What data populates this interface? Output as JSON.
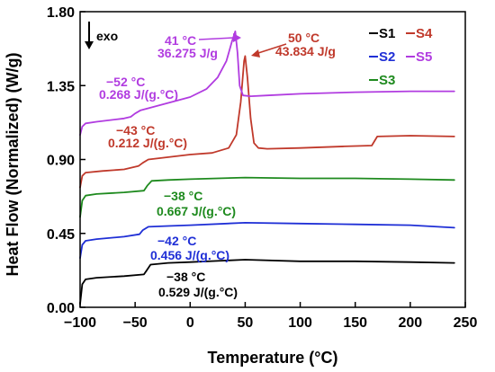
{
  "chart_data": {
    "type": "line",
    "xlabel": "Temperature (°C)",
    "ylabel": "Heat Flow (Normalized) (W/g)",
    "xlim": [
      -100,
      250
    ],
    "ylim": [
      0.0,
      1.8
    ],
    "xticks": [
      "−100",
      "−50",
      "0",
      "50",
      "100",
      "150",
      "200",
      "250"
    ],
    "xtick_values": [
      -100,
      -50,
      0,
      50,
      100,
      150,
      200,
      250
    ],
    "yticks": [
      "0.00",
      "0.45",
      "0.90",
      "1.35",
      "1.80"
    ],
    "ytick_values": [
      0.0,
      0.45,
      0.9,
      1.35,
      1.8
    ],
    "exo_label": "exo",
    "legend": [
      {
        "label": "S1",
        "color": "#000000"
      },
      {
        "label": "S4",
        "color": "#c0392b"
      },
      {
        "label": "S2",
        "color": "#1f2fd6"
      },
      {
        "label": "S5",
        "color": "#b13ce0"
      },
      {
        "label": "S3",
        "color": "#1e8a1e"
      }
    ],
    "series": [
      {
        "name": "S1",
        "color": "#000000",
        "x": [
          -100,
          -98,
          -95,
          -85,
          -60,
          -42,
          -40,
          -36,
          -20,
          0,
          50,
          100,
          150,
          200,
          240
        ],
        "y": [
          0.02,
          0.14,
          0.17,
          0.18,
          0.19,
          0.2,
          0.22,
          0.26,
          0.27,
          0.275,
          0.29,
          0.28,
          0.28,
          0.275,
          0.27
        ]
      },
      {
        "name": "S2",
        "color": "#1f2fd6",
        "x": [
          -100,
          -98,
          -95,
          -85,
          -60,
          -46,
          -43,
          -38,
          -20,
          0,
          50,
          100,
          150,
          200,
          240
        ],
        "y": [
          0.3,
          0.38,
          0.405,
          0.415,
          0.43,
          0.445,
          0.47,
          0.49,
          0.495,
          0.5,
          0.515,
          0.51,
          0.505,
          0.5,
          0.485
        ]
      },
      {
        "name": "S3",
        "color": "#1e8a1e",
        "x": [
          -100,
          -98,
          -95,
          -85,
          -60,
          -42,
          -39,
          -35,
          -20,
          0,
          50,
          100,
          150,
          200,
          240
        ],
        "y": [
          0.55,
          0.65,
          0.68,
          0.69,
          0.7,
          0.71,
          0.74,
          0.77,
          0.775,
          0.78,
          0.79,
          0.785,
          0.785,
          0.78,
          0.775
        ]
      },
      {
        "name": "S4",
        "color": "#c0392b",
        "x": [
          -100,
          -98,
          -95,
          -80,
          -60,
          -47,
          -43,
          -38,
          0,
          20,
          35,
          42,
          46,
          49,
          50,
          52,
          55,
          58,
          62,
          70,
          100,
          140,
          165,
          170,
          200,
          240
        ],
        "y": [
          0.73,
          0.8,
          0.82,
          0.83,
          0.84,
          0.86,
          0.88,
          0.9,
          0.93,
          0.94,
          0.97,
          1.05,
          1.25,
          1.5,
          1.53,
          1.4,
          1.15,
          1.0,
          0.97,
          0.965,
          0.97,
          0.98,
          0.985,
          1.04,
          1.045,
          1.04
        ]
      },
      {
        "name": "S5",
        "color": "#b13ce0",
        "x": [
          -100,
          -98,
          -95,
          -85,
          -60,
          -54,
          -50,
          -45,
          0,
          15,
          25,
          33,
          38,
          41,
          43,
          45,
          48,
          55,
          70,
          100,
          150,
          200,
          240
        ],
        "y": [
          1.05,
          1.1,
          1.12,
          1.13,
          1.15,
          1.16,
          1.18,
          1.2,
          1.28,
          1.33,
          1.4,
          1.5,
          1.62,
          1.68,
          1.55,
          1.35,
          1.29,
          1.285,
          1.29,
          1.3,
          1.31,
          1.315,
          1.315
        ]
      }
    ],
    "annotations": [
      {
        "series": "S5",
        "temp": "−52 °C",
        "value": "0.268 J/(g.°C)",
        "color": "#b13ce0"
      },
      {
        "series": "S5",
        "temp": "41 °C",
        "value": "36.275 J/g",
        "color": "#b13ce0"
      },
      {
        "series": "S4",
        "temp": "50 °C",
        "value": "43.834 J/g",
        "color": "#c0392b"
      },
      {
        "series": "S4",
        "temp": "−43 °C",
        "value": "0.212 J/(g.°C)",
        "color": "#c0392b"
      },
      {
        "series": "S3",
        "temp": "−38 °C",
        "value": "0.667 J/(g.°C)",
        "color": "#1e8a1e"
      },
      {
        "series": "S2",
        "temp": "−42 °C",
        "value": "0.456 J/(g.°C)",
        "color": "#1f2fd6"
      },
      {
        "series": "S1",
        "temp": "−38 °C",
        "value": "0.529 J/(g.°C)",
        "color": "#000000"
      }
    ],
    "grid": false
  }
}
